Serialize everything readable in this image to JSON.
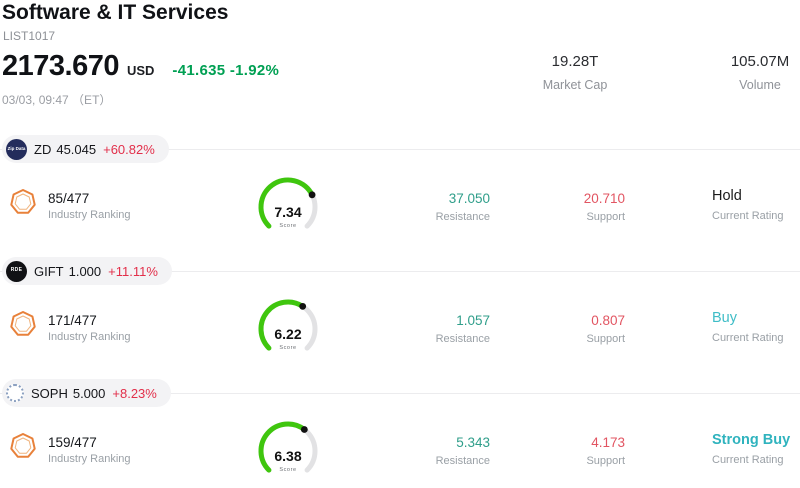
{
  "header": {
    "title": "Software & IT Services",
    "list_id": "LIST1017",
    "price": "2173.670",
    "currency": "USD",
    "change": "-41.635 -1.92%",
    "change_color": "#00a053",
    "datetime": "03/03, 09:47 （ET）",
    "market_cap_value": "19.28T",
    "market_cap_label": "Market Cap",
    "volume_value": "105.07M",
    "volume_label": "Volume"
  },
  "labels": {
    "industry_ranking": "Industry Ranking",
    "score": "Score",
    "resistance": "Resistance",
    "support": "Support",
    "current_rating": "Current Rating"
  },
  "colors": {
    "resistance_value": "#2f9e8a",
    "support_value": "#e25562",
    "pill_change": "#e22f4a",
    "gauge_green": "#3fc60e",
    "gauge_track": "#e2e2e4"
  },
  "tickers": [
    {
      "symbol": "ZD",
      "price": "45.045",
      "change": "+60.82%",
      "badge_text": "Zip Data",
      "ranking": "85/477",
      "score": 7.34,
      "score_text": "7.34",
      "resistance": "37.050",
      "support": "20.710",
      "rating": "Hold",
      "rating_color": "#1a1a1a",
      "rating_bold": false
    },
    {
      "symbol": "GIFT",
      "price": "1.000",
      "change": "+11.11%",
      "badge_text": "RDE",
      "ranking": "171/477",
      "score": 6.22,
      "score_text": "6.22",
      "resistance": "1.057",
      "support": "0.807",
      "rating": "Buy",
      "rating_color": "#3fbdc7",
      "rating_bold": false
    },
    {
      "symbol": "SOPH",
      "price": "5.000",
      "change": "+8.23%",
      "badge_text": "",
      "ranking": "159/477",
      "score": 6.38,
      "score_text": "6.38",
      "resistance": "5.343",
      "support": "4.173",
      "rating": "Strong Buy",
      "rating_color": "#2fb3be",
      "rating_bold": true
    }
  ]
}
